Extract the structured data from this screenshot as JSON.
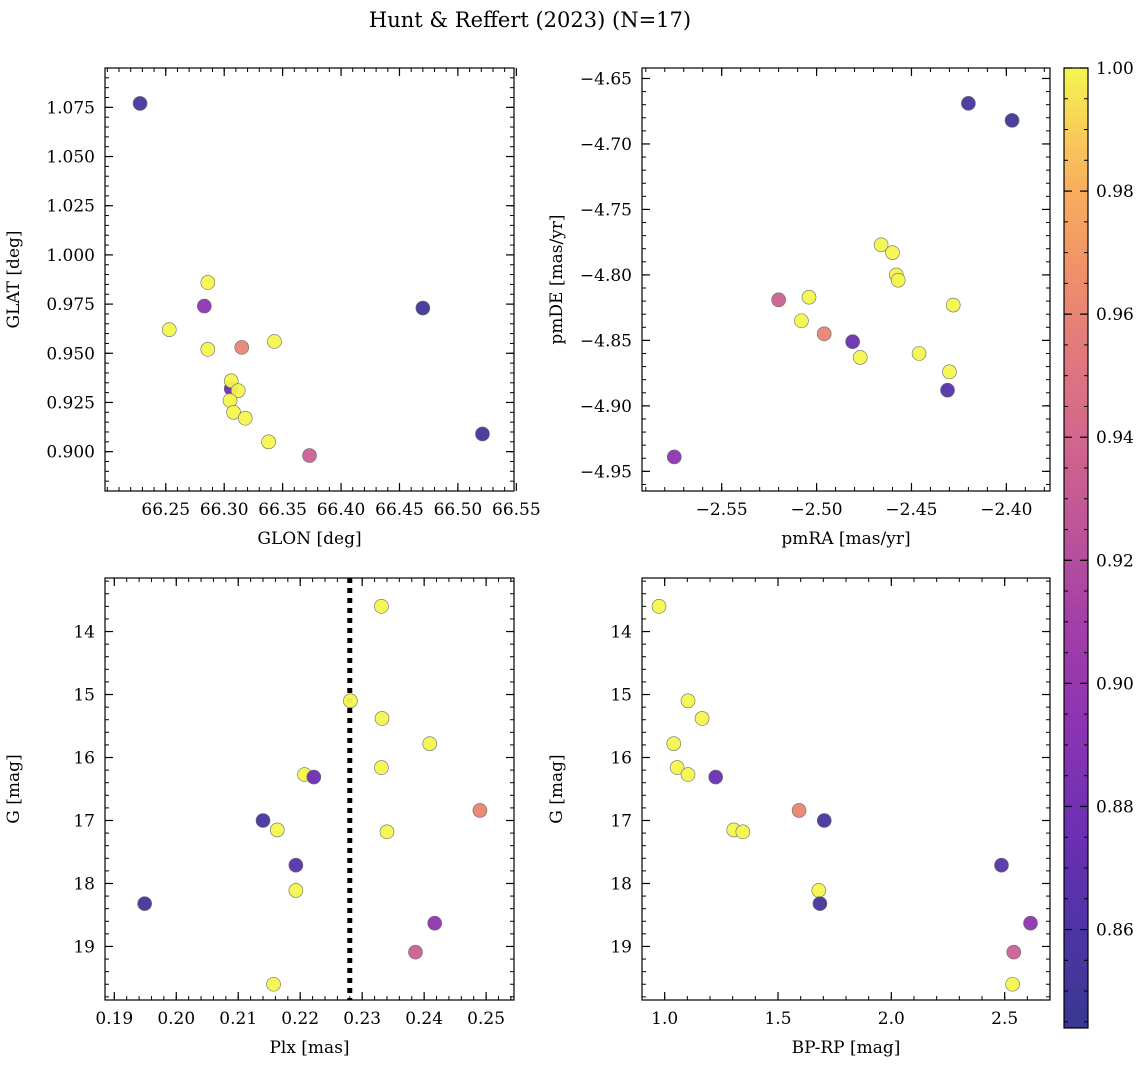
{
  "title": "Hunt & Reffert (2023) (N=17)",
  "colorbar": {
    "range": [
      0.844,
      1.0
    ],
    "ticks": [
      "0.86",
      "0.88",
      "0.90",
      "0.92",
      "0.94",
      "0.96",
      "0.98",
      "1.00"
    ],
    "tick_values": [
      0.86,
      0.88,
      0.9,
      0.92,
      0.94,
      0.96,
      0.98,
      1.0
    ],
    "colormap": "plasma"
  },
  "chart_data": [
    {
      "type": "scatter",
      "id": "glon-glat",
      "xlabel": "GLON [deg]",
      "ylabel": "GLAT [deg]",
      "xlim": [
        66.198,
        66.548
      ],
      "ylim": [
        0.88,
        1.095
      ],
      "inverted_y": false,
      "xticks": [
        66.25,
        66.3,
        66.35,
        66.4,
        66.45,
        66.5,
        66.55
      ],
      "xtick_labels": [
        "66.25",
        "66.30",
        "66.35",
        "66.40",
        "66.45",
        "66.50",
        "66.55"
      ],
      "yticks": [
        0.9,
        0.925,
        0.95,
        0.975,
        1.0,
        1.025,
        1.05,
        1.075
      ],
      "ytick_labels": [
        "0.900",
        "0.925",
        "0.950",
        "0.975",
        "1.000",
        "1.025",
        "1.050",
        "1.075"
      ],
      "points": [
        {
          "x": 66.228,
          "y": 1.077,
          "c": 0.855
        },
        {
          "x": 66.253,
          "y": 0.962,
          "c": 1.0
        },
        {
          "x": 66.283,
          "y": 0.974,
          "c": 0.895
        },
        {
          "x": 66.286,
          "y": 0.986,
          "c": 1.0
        },
        {
          "x": 66.286,
          "y": 0.952,
          "c": 1.0
        },
        {
          "x": 66.315,
          "y": 0.953,
          "c": 0.96
        },
        {
          "x": 66.343,
          "y": 0.956,
          "c": 1.0
        },
        {
          "x": 66.306,
          "y": 0.932,
          "c": 0.875
        },
        {
          "x": 66.306,
          "y": 0.936,
          "c": 1.0
        },
        {
          "x": 66.312,
          "y": 0.931,
          "c": 1.0
        },
        {
          "x": 66.305,
          "y": 0.926,
          "c": 1.0
        },
        {
          "x": 66.308,
          "y": 0.92,
          "c": 1.0
        },
        {
          "x": 66.318,
          "y": 0.917,
          "c": 1.0
        },
        {
          "x": 66.338,
          "y": 0.905,
          "c": 1.0
        },
        {
          "x": 66.373,
          "y": 0.898,
          "c": 0.935
        },
        {
          "x": 66.47,
          "y": 0.973,
          "c": 0.85
        },
        {
          "x": 66.521,
          "y": 0.909,
          "c": 0.85
        }
      ]
    },
    {
      "type": "scatter",
      "id": "pmra-pmde",
      "xlabel": "pmRA [mas/yr]",
      "ylabel": "pmDE [mas/yr]",
      "xlim": [
        -2.592,
        -2.377
      ],
      "ylim": [
        -4.965,
        -4.642
      ],
      "inverted_y": false,
      "xticks": [
        -2.55,
        -2.5,
        -2.45,
        -2.4
      ],
      "xtick_labels": [
        "−2.55",
        "−2.50",
        "−2.45",
        "−2.40"
      ],
      "yticks": [
        -4.95,
        -4.9,
        -4.85,
        -4.8,
        -4.75,
        -4.7,
        -4.65
      ],
      "ytick_labels": [
        "−4.95",
        "−4.90",
        "−4.85",
        "−4.80",
        "−4.75",
        "−4.70",
        "−4.65"
      ],
      "points": [
        {
          "x": -2.42,
          "y": -4.669,
          "c": 0.855
        },
        {
          "x": -2.397,
          "y": -4.682,
          "c": 0.85
        },
        {
          "x": -2.466,
          "y": -4.777,
          "c": 1.0
        },
        {
          "x": -2.46,
          "y": -4.783,
          "c": 1.0
        },
        {
          "x": -2.458,
          "y": -4.8,
          "c": 1.0
        },
        {
          "x": -2.457,
          "y": -4.804,
          "c": 1.0
        },
        {
          "x": -2.428,
          "y": -4.823,
          "c": 1.0
        },
        {
          "x": -2.52,
          "y": -4.819,
          "c": 0.935
        },
        {
          "x": -2.504,
          "y": -4.817,
          "c": 1.0
        },
        {
          "x": -2.508,
          "y": -4.835,
          "c": 1.0
        },
        {
          "x": -2.496,
          "y": -4.845,
          "c": 0.96
        },
        {
          "x": -2.481,
          "y": -4.851,
          "c": 0.875
        },
        {
          "x": -2.477,
          "y": -4.863,
          "c": 1.0
        },
        {
          "x": -2.446,
          "y": -4.86,
          "c": 1.0
        },
        {
          "x": -2.43,
          "y": -4.874,
          "c": 1.0
        },
        {
          "x": -2.431,
          "y": -4.888,
          "c": 0.865
        },
        {
          "x": -2.575,
          "y": -4.939,
          "c": 0.895
        }
      ]
    },
    {
      "type": "scatter",
      "id": "plx-g",
      "xlabel": "Plx [mas]",
      "ylabel": "G [mag]",
      "xlim": [
        0.1885,
        0.2545
      ],
      "ylim": [
        19.85,
        13.15
      ],
      "inverted_y": true,
      "xticks": [
        0.19,
        0.2,
        0.21,
        0.22,
        0.23,
        0.24,
        0.25
      ],
      "xtick_labels": [
        "0.19",
        "0.20",
        "0.21",
        "0.22",
        "0.23",
        "0.24",
        "0.25"
      ],
      "yticks": [
        14,
        15,
        16,
        17,
        18,
        19
      ],
      "ytick_labels": [
        "14",
        "15",
        "16",
        "17",
        "18",
        "19"
      ],
      "vline": {
        "x": 0.228,
        "style": "dotted"
      },
      "points": [
        {
          "x": 0.2331,
          "y": 13.6,
          "c": 1.0
        },
        {
          "x": 0.2281,
          "y": 15.1,
          "c": 1.0
        },
        {
          "x": 0.2332,
          "y": 15.38,
          "c": 1.0
        },
        {
          "x": 0.2409,
          "y": 15.78,
          "c": 1.0
        },
        {
          "x": 0.2331,
          "y": 16.16,
          "c": 1.0
        },
        {
          "x": 0.2207,
          "y": 16.27,
          "c": 1.0
        },
        {
          "x": 0.2222,
          "y": 16.31,
          "c": 0.875
        },
        {
          "x": 0.249,
          "y": 16.84,
          "c": 0.96
        },
        {
          "x": 0.214,
          "y": 17.0,
          "c": 0.855
        },
        {
          "x": 0.2163,
          "y": 17.15,
          "c": 1.0
        },
        {
          "x": 0.234,
          "y": 17.18,
          "c": 1.0
        },
        {
          "x": 0.2193,
          "y": 17.71,
          "c": 0.865
        },
        {
          "x": 0.2193,
          "y": 18.11,
          "c": 1.0
        },
        {
          "x": 0.1949,
          "y": 18.32,
          "c": 0.85
        },
        {
          "x": 0.2417,
          "y": 18.63,
          "c": 0.895
        },
        {
          "x": 0.2386,
          "y": 19.09,
          "c": 0.935
        },
        {
          "x": 0.2157,
          "y": 19.6,
          "c": 1.0
        }
      ]
    },
    {
      "type": "scatter",
      "id": "bprp-g",
      "xlabel": "BP-RP [mag]",
      "ylabel": "G [mag]",
      "xlim": [
        0.9,
        2.7
      ],
      "ylim": [
        19.85,
        13.15
      ],
      "inverted_y": true,
      "xticks": [
        1.0,
        1.5,
        2.0,
        2.5
      ],
      "xtick_labels": [
        "1.0",
        "1.5",
        "2.0",
        "2.5"
      ],
      "yticks": [
        14,
        15,
        16,
        17,
        18,
        19
      ],
      "ytick_labels": [
        "14",
        "15",
        "16",
        "17",
        "18",
        "19"
      ],
      "points": [
        {
          "x": 0.975,
          "y": 13.6,
          "c": 1.0
        },
        {
          "x": 1.103,
          "y": 15.1,
          "c": 1.0
        },
        {
          "x": 1.165,
          "y": 15.38,
          "c": 1.0
        },
        {
          "x": 1.04,
          "y": 15.78,
          "c": 1.0
        },
        {
          "x": 1.055,
          "y": 16.16,
          "c": 1.0
        },
        {
          "x": 1.103,
          "y": 16.27,
          "c": 1.0
        },
        {
          "x": 1.225,
          "y": 16.31,
          "c": 0.875
        },
        {
          "x": 1.593,
          "y": 16.84,
          "c": 0.96
        },
        {
          "x": 1.704,
          "y": 17.0,
          "c": 0.855
        },
        {
          "x": 1.305,
          "y": 17.15,
          "c": 1.0
        },
        {
          "x": 1.345,
          "y": 17.18,
          "c": 1.0
        },
        {
          "x": 2.486,
          "y": 17.71,
          "c": 0.865
        },
        {
          "x": 1.68,
          "y": 18.11,
          "c": 1.0
        },
        {
          "x": 1.685,
          "y": 18.32,
          "c": 0.85
        },
        {
          "x": 2.614,
          "y": 18.63,
          "c": 0.895
        },
        {
          "x": 2.54,
          "y": 19.09,
          "c": 0.935
        },
        {
          "x": 2.535,
          "y": 19.6,
          "c": 1.0
        }
      ]
    }
  ]
}
